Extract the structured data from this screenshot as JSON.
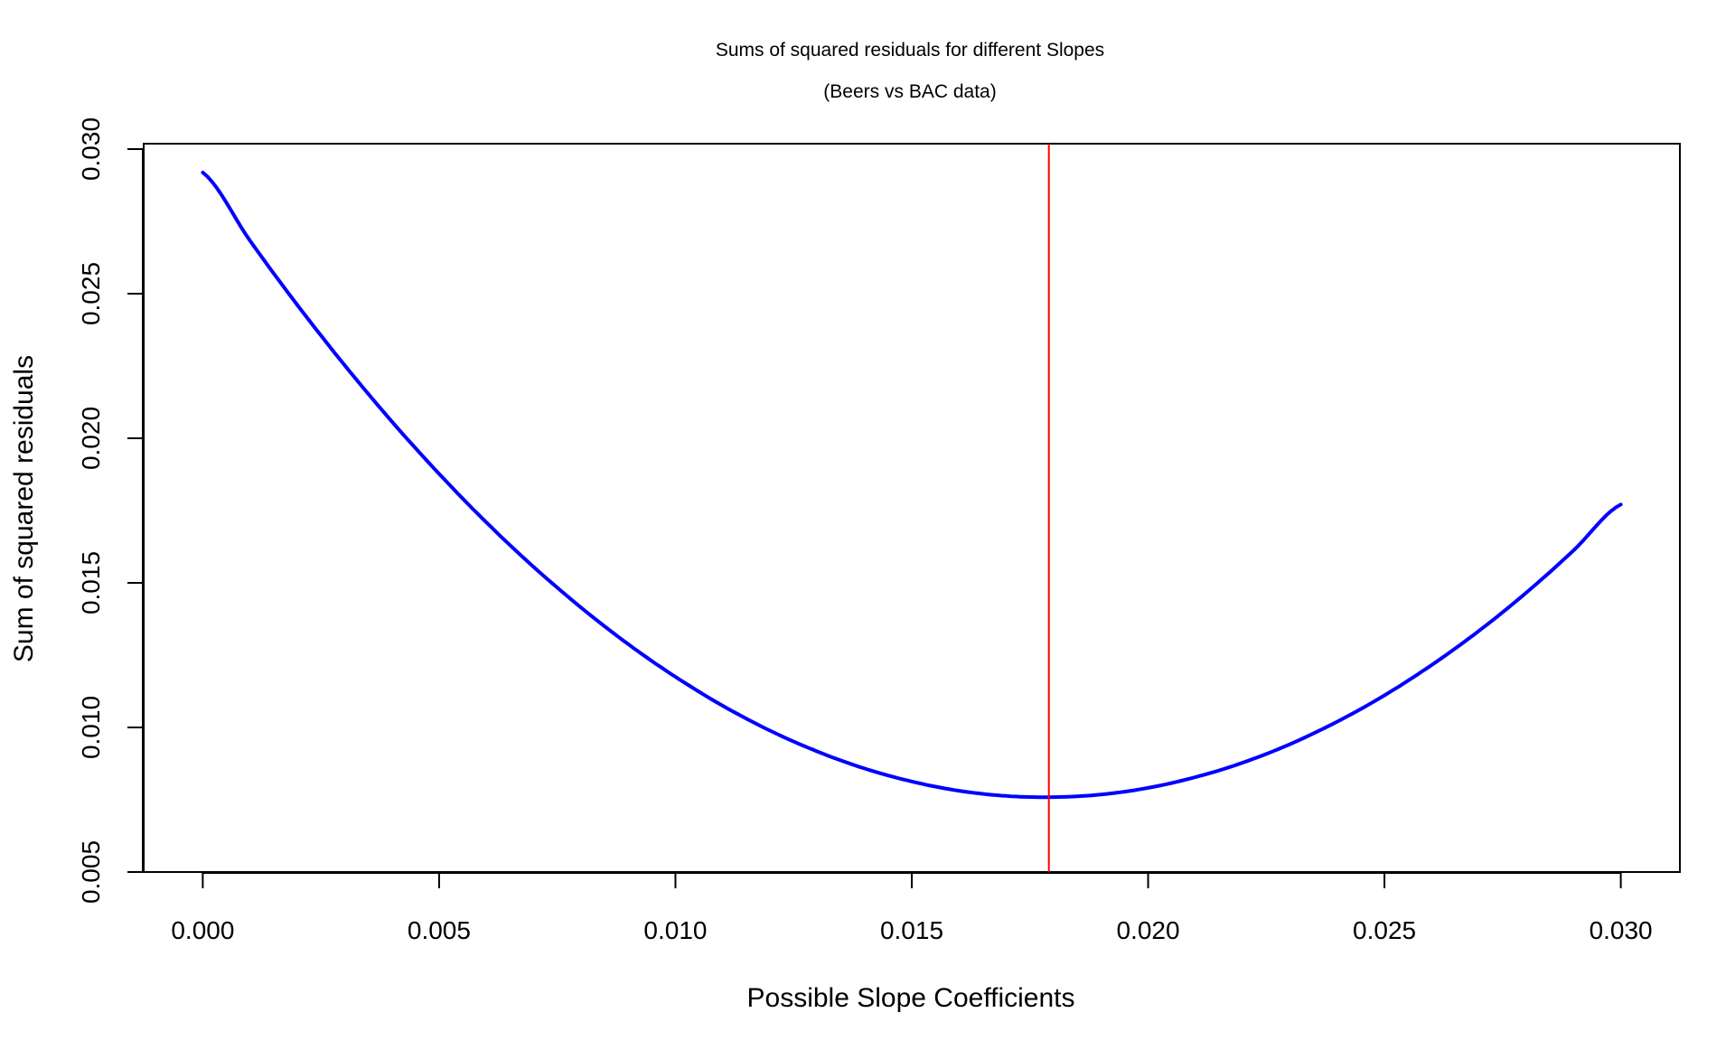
{
  "chart_data": {
    "type": "line",
    "title": "Sums of squared residuals for different Slopes",
    "subtitle": "(Beers vs BAC data)",
    "xlabel": "Possible Slope Coefficients",
    "ylabel": "Sum of squared residuals",
    "xlim": [
      -0.00125,
      0.03125
    ],
    "ylim": [
      0.005,
      0.03
    ],
    "xticks": [
      "0.000",
      "0.005",
      "0.010",
      "0.015",
      "0.020",
      "0.025",
      "0.030"
    ],
    "yticks": [
      "0.005",
      "0.010",
      "0.015",
      "0.020",
      "0.025",
      "0.030"
    ],
    "grid": false,
    "series": [
      {
        "color": "#0000ff",
        "x": [
          0.0,
          0.001,
          0.002,
          0.003,
          0.004,
          0.005,
          0.006,
          0.007,
          0.008,
          0.009,
          0.01,
          0.011,
          0.012,
          0.013,
          0.014,
          0.015,
          0.016,
          0.017,
          0.018,
          0.019,
          0.02,
          0.021,
          0.022,
          0.023,
          0.024,
          0.025,
          0.026,
          0.027,
          0.028,
          0.029,
          0.03
        ],
        "y": [
          0.02919,
          0.02683,
          0.02461,
          0.02253,
          0.02058,
          0.01877,
          0.01709,
          0.01555,
          0.01415,
          0.01288,
          0.01175,
          0.01075,
          0.00989,
          0.00917,
          0.00858,
          0.00813,
          0.00781,
          0.00763,
          0.00759,
          0.00768,
          0.00791,
          0.00828,
          0.00878,
          0.00942,
          0.0102,
          0.01111,
          0.01216,
          0.01334,
          0.01466,
          0.01612,
          0.01771
        ]
      }
    ],
    "vline": {
      "x": 0.0179,
      "color": "#ff0000"
    }
  }
}
